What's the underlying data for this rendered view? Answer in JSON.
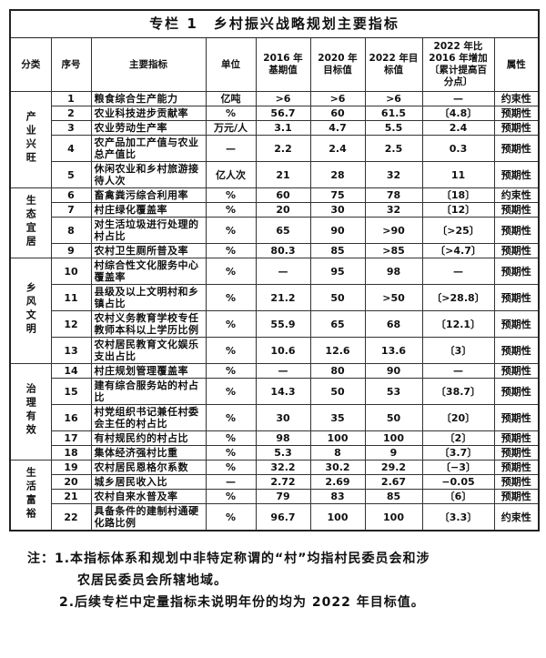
{
  "title": "专栏 1　乡村振兴战略规划主要指标",
  "headers": [
    "分类",
    "序号",
    "主要指标",
    "单位",
    "2016 年基期值",
    "2020 年目标值",
    "2022 年目标值",
    "2022 年比 2016 年增加〔累计提高百分点〕",
    "属性"
  ],
  "groups": [
    {
      "name": "产业兴旺",
      "rows": [
        [
          "1",
          "粮食综合生产能力",
          "亿吨",
          ">6",
          ">6",
          ">6",
          "—",
          "约束性"
        ],
        [
          "2",
          "农业科技进步贡献率",
          "%",
          "56.7",
          "60",
          "61.5",
          "〔4.8〕",
          "预期性"
        ],
        [
          "3",
          "农业劳动生产率",
          "万元/人",
          "3.1",
          "4.7",
          "5.5",
          "2.4",
          "预期性"
        ],
        [
          "4",
          "农产品加工产值与农业总产值比",
          "—",
          "2.2",
          "2.4",
          "2.5",
          "0.3",
          "预期性"
        ],
        [
          "5",
          "休闲农业和乡村旅游接待人次",
          "亿人次",
          "21",
          "28",
          "32",
          "11",
          "预期性"
        ]
      ]
    },
    {
      "name": "生态宜居",
      "rows": [
        [
          "6",
          "畜禽粪污综合利用率",
          "%",
          "60",
          "75",
          "78",
          "〔18〕",
          "约束性"
        ],
        [
          "7",
          "村庄绿化覆盖率",
          "%",
          "20",
          "30",
          "32",
          "〔12〕",
          "预期性"
        ],
        [
          "8",
          "对生活垃圾进行处理的村占比",
          "%",
          "65",
          "90",
          ">90",
          "〔>25〕",
          "预期性"
        ],
        [
          "9",
          "农村卫生厕所普及率",
          "%",
          "80.3",
          "85",
          ">85",
          "〔>4.7〕",
          "预期性"
        ]
      ]
    },
    {
      "name": "乡风文明",
      "rows": [
        [
          "10",
          "村综合性文化服务中心覆盖率",
          "%",
          "—",
          "95",
          "98",
          "—",
          "预期性"
        ],
        [
          "11",
          "县级及以上文明村和乡镇占比",
          "%",
          "21.2",
          "50",
          ">50",
          "〔>28.8〕",
          "预期性"
        ],
        [
          "12",
          "农村义务教育学校专任教师本科以上学历比例",
          "%",
          "55.9",
          "65",
          "68",
          "〔12.1〕",
          "预期性"
        ],
        [
          "13",
          "农村居民教育文化娱乐支出占比",
          "%",
          "10.6",
          "12.6",
          "13.6",
          "〔3〕",
          "预期性"
        ]
      ]
    },
    {
      "name": "治理有效",
      "rows": [
        [
          "14",
          "村庄规划管理覆盖率",
          "%",
          "—",
          "80",
          "90",
          "—",
          "预期性"
        ],
        [
          "15",
          "建有综合服务站的村占比",
          "%",
          "14.3",
          "50",
          "53",
          "〔38.7〕",
          "预期性"
        ],
        [
          "16",
          "村党组织书记兼任村委会主任的村占比",
          "%",
          "30",
          "35",
          "50",
          "〔20〕",
          "预期性"
        ],
        [
          "17",
          "有村规民约的村占比",
          "%",
          "98",
          "100",
          "100",
          "〔2〕",
          "预期性"
        ],
        [
          "18",
          "集体经济强村比重",
          "%",
          "5.3",
          "8",
          "9",
          "〔3.7〕",
          "预期性"
        ]
      ]
    },
    {
      "name": "生活富裕",
      "rows": [
        [
          "19",
          "农村居民恩格尔系数",
          "%",
          "32.2",
          "30.2",
          "29.2",
          "〔−3〕",
          "预期性"
        ],
        [
          "20",
          "城乡居民收入比",
          "—",
          "2.72",
          "2.69",
          "2.67",
          "−0.05",
          "预期性"
        ],
        [
          "21",
          "农村自来水普及率",
          "%",
          "79",
          "83",
          "85",
          "〔6〕",
          "预期性"
        ],
        [
          "22",
          "具备条件的建制村通硬化路比例",
          "%",
          "96.7",
          "100",
          "100",
          "〔3.3〕",
          "约束性"
        ]
      ]
    }
  ],
  "notes": {
    "line1": "注：1.本指标体系和规划中非特定称谓的“村”均指村民委员会和涉",
    "line2": "农居民委员会所辖地域。",
    "line3": "2.后续专栏中定量指标未说明年份的均为 2022 年目标值。"
  }
}
